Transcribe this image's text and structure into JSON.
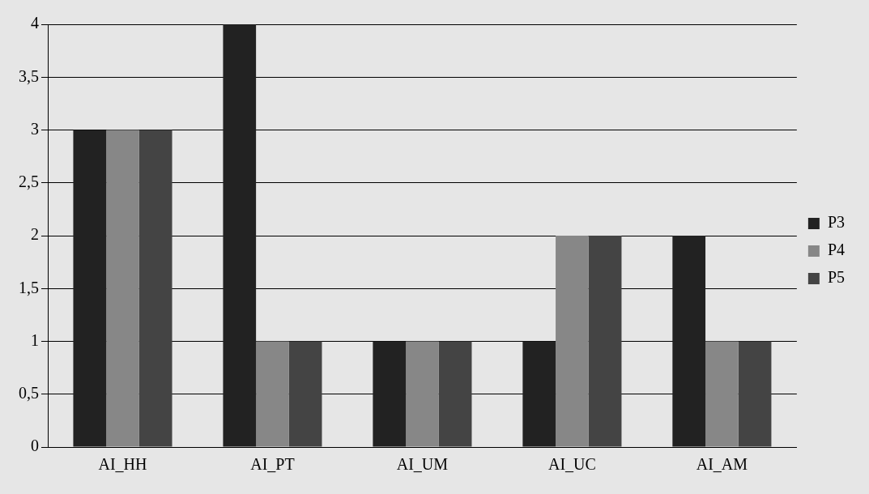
{
  "chart_data": {
    "type": "bar",
    "categories": [
      "AI_HH",
      "AI_PT",
      "AI_UM",
      "AI_UC",
      "AI_AM"
    ],
    "series": [
      {
        "name": "P3",
        "color": "#222222",
        "values": [
          3,
          4,
          1,
          1,
          2
        ]
      },
      {
        "name": "P4",
        "color": "#878787",
        "values": [
          3,
          1,
          1,
          2,
          1
        ]
      },
      {
        "name": "P5",
        "color": "#444444",
        "values": [
          3,
          1,
          1,
          2,
          1
        ]
      }
    ],
    "ylim": [
      0,
      4
    ],
    "yticks": [
      0,
      {
        "value": 0.5,
        "label": "0,5"
      },
      1,
      {
        "value": 1.5,
        "label": "1,5"
      },
      2,
      {
        "value": 2.5,
        "label": "2,5"
      },
      3,
      {
        "value": 3.5,
        "label": "3,5"
      },
      4
    ],
    "grid": "y",
    "legend": "right"
  }
}
